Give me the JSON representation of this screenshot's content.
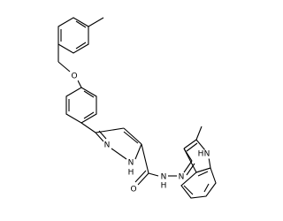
{
  "atoms": [
    {
      "label": "O"
    },
    {
      "label": "N"
    },
    {
      "label": "N"
    },
    {
      "label": "H"
    },
    {
      "label": "O"
    },
    {
      "label": "N"
    },
    {
      "label": "H"
    },
    {
      "label": "N"
    },
    {
      "label": "N"
    },
    {
      "label": "H"
    }
  ]
}
